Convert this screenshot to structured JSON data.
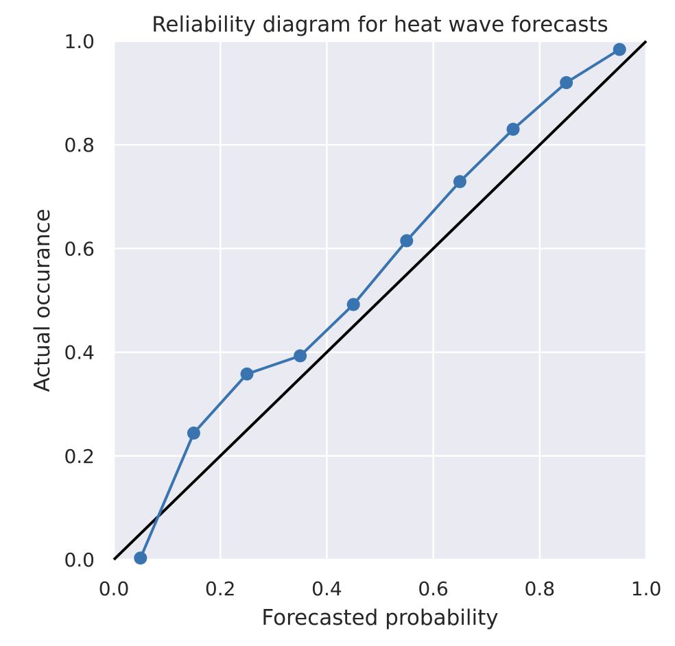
{
  "chart_data": {
    "type": "line",
    "title": "Reliability diagram for heat wave forecasts",
    "xlabel": "Forecasted probability",
    "ylabel": "Actual occurance",
    "xlim": [
      0.0,
      1.0
    ],
    "ylim": [
      0.0,
      1.0
    ],
    "xticks": [
      "0.0",
      "0.2",
      "0.4",
      "0.6",
      "0.8",
      "1.0"
    ],
    "yticks": [
      "0.0",
      "0.2",
      "0.4",
      "0.6",
      "0.8",
      "1.0"
    ],
    "grid": true,
    "legend": "none",
    "background_color": "#EAEAF2",
    "series": [
      {
        "x": [
          0.05,
          0.15,
          0.25,
          0.35,
          0.45,
          0.55,
          0.65,
          0.75,
          0.85,
          0.95
        ],
        "y": [
          0.003,
          0.244,
          0.358,
          0.393,
          0.492,
          0.615,
          0.729,
          0.83,
          0.92,
          0.984
        ],
        "color": "#3A74B0",
        "marker": "circle"
      }
    ],
    "reference_line": {
      "x": [
        0.0,
        1.0
      ],
      "y": [
        0.0,
        1.0
      ],
      "color": "#000000"
    }
  }
}
